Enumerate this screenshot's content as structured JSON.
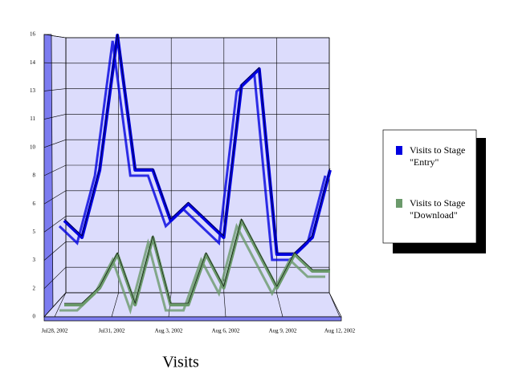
{
  "chart_data": {
    "type": "line",
    "title": "Visits",
    "categories": [
      "Jul28, 2002",
      null,
      null,
      "Jul31, 2002",
      null,
      null,
      "Aug 3, 2002",
      null,
      null,
      "Aug 6, 2002",
      null,
      null,
      "Aug 9, 2002",
      null,
      null,
      "Aug 12, 2002"
    ],
    "series": [
      {
        "name": "Visits to Stage \"Entry\"",
        "color": "#0000e0",
        "values": [
          5,
          4,
          8,
          16,
          8,
          8,
          5,
          6,
          5,
          4,
          13,
          14,
          3,
          3,
          4,
          8
        ]
      },
      {
        "name": "Visits to Stage \"Download\"",
        "color": "#6b9a6b",
        "values": [
          0,
          0,
          1,
          3,
          0,
          4,
          0,
          0,
          3,
          1,
          5,
          3,
          1,
          3,
          2,
          2
        ]
      }
    ],
    "ylim": [
      0,
      16
    ],
    "yticks": [
      0,
      {
        "value": 1.6,
        "label": "2"
      },
      {
        "value": 3.2,
        "label": "3"
      },
      {
        "value": 4.8,
        "label": "5"
      },
      {
        "value": 6.4,
        "label": "6"
      },
      8,
      {
        "value": 9.6,
        "label": "10"
      },
      {
        "value": 11.2,
        "label": "11"
      },
      {
        "value": 12.8,
        "label": "13"
      },
      {
        "value": 14.4,
        "label": "14"
      },
      16
    ],
    "grid": true,
    "legend": "right"
  }
}
